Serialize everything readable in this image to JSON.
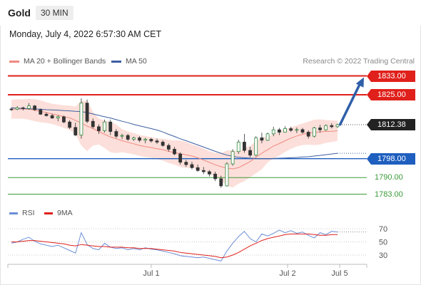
{
  "header": {
    "symbol": "Gold",
    "timeframe": "30 MIN"
  },
  "datetime": "Monday, July 4, 2022 6:57:30 AM CET",
  "legend": {
    "ma20_label": "MA 20 + Bollinger Bands",
    "ma50_label": "MA 50",
    "credit": "Research © 2022 Trading Central",
    "rsi_label": "RSI",
    "ma9_label": "9MA"
  },
  "colors": {
    "resistance": "#e0201b",
    "support": "#1f5fbf",
    "target": "#3a9a3a",
    "ma20": "#f08a80",
    "ma50": "#3d5fa3",
    "band": "#fcd9d4",
    "rsi": "#6b8ed6",
    "ma9": "#e0201b",
    "bull": "#2e8b3c",
    "bear": "#333333",
    "arrow": "#2f5fa8"
  },
  "chart_data": [
    {
      "type": "candlestick",
      "title": "Gold",
      "timeframe": "30 MIN",
      "x_ticks": [
        "Jul 1",
        "Jul 2",
        "Jul 5"
      ],
      "ylim": [
        1779,
        1836
      ],
      "last_price": 1812.38,
      "price_levels": [
        {
          "value": 1833.0,
          "label": "1833.00",
          "kind": "resistance"
        },
        {
          "value": 1825.0,
          "label": "1825.00",
          "kind": "resistance"
        },
        {
          "value": 1812.38,
          "label": "1812.38",
          "kind": "last"
        },
        {
          "value": 1798.0,
          "label": "1798.00",
          "kind": "pivot"
        },
        {
          "value": 1790.0,
          "label": "1790.00",
          "kind": "support"
        },
        {
          "value": 1783.0,
          "label": "1783.00",
          "kind": "support"
        }
      ],
      "series": [
        {
          "name": "MA 20 + Bollinger Bands",
          "values": [
            1818.9,
            1819.0,
            1819.0,
            1818.9,
            1818.5,
            1818.0,
            1817.5,
            1816.9,
            1816.4,
            1815.8,
            1815.3,
            1814.2,
            1813.0,
            1811.8,
            1810.7,
            1809.5,
            1808.3,
            1807.2,
            1806.4,
            1805.6,
            1804.9,
            1804.3,
            1803.6,
            1803.1,
            1802.7,
            1802.2,
            1801.8,
            1801.1,
            1800.6,
            1800.1,
            1799.6,
            1799.1,
            1798.4,
            1797.4,
            1796.4,
            1795.4,
            1794.6,
            1794.0,
            1793.7,
            1794.2,
            1795.5,
            1796.8,
            1798.6,
            1800.3,
            1801.8,
            1803.3,
            1804.4,
            1805.6,
            1806.7,
            1807.6,
            1808.3,
            1808.8,
            1809.1,
            1809.3,
            1809.5,
            1809.6,
            1809.8
          ]
        },
        {
          "name": "MA 50",
          "values": [
            1819.5,
            1819.3,
            1819.2,
            1819.1,
            1819.0,
            1818.9,
            1818.7,
            1818.6,
            1818.5,
            1818.3,
            1818.2,
            1818.0,
            1817.9,
            1817.5,
            1816.9,
            1816.3,
            1815.7,
            1815.2,
            1814.5,
            1813.8,
            1813.2,
            1812.5,
            1811.9,
            1811.3,
            1810.7,
            1810.1,
            1809.3,
            1808.3,
            1807.4,
            1806.4,
            1805.6,
            1804.7,
            1803.8,
            1802.9,
            1802.0,
            1801.1,
            1800.3,
            1799.5,
            1799.0,
            1798.6,
            1798.4,
            1798.2,
            1798.1,
            1798.0,
            1798.0,
            1798.1,
            1798.2,
            1798.3,
            1798.4,
            1798.5,
            1798.7,
            1798.8,
            1799.1,
            1799.4,
            1799.7,
            1800.0,
            1800.3
          ]
        }
      ],
      "candles": [
        [
          1819,
          1819.7,
          1818.2,
          1818.9
        ],
        [
          1818.9,
          1820.2,
          1818.5,
          1819.5
        ],
        [
          1819.5,
          1820.0,
          1818.4,
          1819.2
        ],
        [
          1819.2,
          1821.5,
          1818.7,
          1820.3
        ],
        [
          1820.3,
          1820.7,
          1818.2,
          1818.7
        ],
        [
          1818.7,
          1819.2,
          1816.5,
          1816.8
        ],
        [
          1816.8,
          1817.5,
          1815.8,
          1816.2
        ],
        [
          1816.2,
          1817.0,
          1814.8,
          1815.2
        ],
        [
          1815.2,
          1816.3,
          1813.8,
          1815.7
        ],
        [
          1815.7,
          1816.2,
          1813.0,
          1813.5
        ],
        [
          1813.5,
          1814.3,
          1810.5,
          1811.2
        ],
        [
          1811.2,
          1813.2,
          1807.5,
          1808.0
        ],
        [
          1808.0,
          1823.5,
          1806.5,
          1821.5
        ],
        [
          1821.5,
          1823.0,
          1813.0,
          1813.8
        ],
        [
          1813.8,
          1815.0,
          1810.7,
          1811.5
        ],
        [
          1811.5,
          1812.5,
          1808.5,
          1809.8
        ],
        [
          1809.8,
          1814.5,
          1809.0,
          1813.5
        ],
        [
          1813.5,
          1814.5,
          1808.0,
          1809.5
        ],
        [
          1809.5,
          1810.5,
          1806.6,
          1807.5
        ],
        [
          1807.5,
          1808.5,
          1806.3,
          1807.8
        ],
        [
          1807.8,
          1808.5,
          1805.5,
          1806.2
        ],
        [
          1806.2,
          1807.3,
          1805.5,
          1806.8
        ],
        [
          1806.8,
          1807.5,
          1805.0,
          1805.8
        ],
        [
          1805.8,
          1806.8,
          1804.5,
          1806.2
        ],
        [
          1806.2,
          1806.8,
          1804.8,
          1805.5
        ],
        [
          1805.5,
          1806.5,
          1804.2,
          1805.0
        ],
        [
          1805.0,
          1805.8,
          1803.0,
          1803.6
        ],
        [
          1803.6,
          1804.4,
          1801.0,
          1802.0
        ],
        [
          1802.0,
          1803.0,
          1799.5,
          1800.0
        ],
        [
          1800.0,
          1800.7,
          1795.5,
          1796.5
        ],
        [
          1796.5,
          1797.5,
          1794.5,
          1795.5
        ],
        [
          1795.5,
          1796.7,
          1793.5,
          1794.2
        ],
        [
          1794.2,
          1795.5,
          1792.5,
          1793.0
        ],
        [
          1793.0,
          1794.5,
          1791.5,
          1792.5
        ],
        [
          1792.5,
          1793.2,
          1790.5,
          1791.5
        ],
        [
          1791.5,
          1792.5,
          1788.5,
          1789.5
        ],
        [
          1789.5,
          1790.8,
          1785.7,
          1786.5
        ],
        [
          1786.5,
          1796.5,
          1786.2,
          1795.8
        ],
        [
          1795.8,
          1802.0,
          1795.0,
          1801.0
        ],
        [
          1801.0,
          1806.0,
          1800.0,
          1805.0
        ],
        [
          1805.0,
          1808.5,
          1800.5,
          1801.5
        ],
        [
          1801.5,
          1803.0,
          1798.5,
          1799.5
        ],
        [
          1799.5,
          1807.5,
          1799.0,
          1806.8
        ],
        [
          1806.8,
          1809.0,
          1804.5,
          1805.8
        ],
        [
          1805.8,
          1809.0,
          1805.5,
          1808.5
        ],
        [
          1808.5,
          1811.5,
          1807.5,
          1810.2
        ],
        [
          1810.2,
          1811.0,
          1808.0,
          1809.2
        ],
        [
          1809.2,
          1811.7,
          1809.0,
          1810.7
        ],
        [
          1810.7,
          1811.5,
          1809.3,
          1810.0
        ],
        [
          1810.0,
          1811.2,
          1808.8,
          1810.3
        ],
        [
          1810.3,
          1811.0,
          1808.5,
          1809.2
        ],
        [
          1809.2,
          1810.0,
          1806.5,
          1807.5
        ],
        [
          1807.5,
          1811.5,
          1807.0,
          1811.0
        ],
        [
          1811.0,
          1812.3,
          1809.0,
          1810.2
        ],
        [
          1810.2,
          1812.5,
          1809.8,
          1812.0
        ],
        [
          1812.0,
          1813.0,
          1810.8,
          1811.5
        ],
        [
          1811.5,
          1812.8,
          1811.0,
          1812.38
        ]
      ]
    },
    {
      "type": "line",
      "title": "RSI",
      "y_ticks": [
        "70",
        "50",
        "30"
      ],
      "ylim": [
        20,
        75
      ],
      "series": [
        {
          "name": "RSI",
          "values": [
            48,
            50,
            54,
            57,
            51,
            47,
            45,
            43,
            45,
            41,
            37,
            33,
            64,
            46,
            40,
            38,
            48,
            42,
            40,
            41,
            38,
            40,
            38,
            41,
            39,
            38,
            36,
            34,
            32,
            29,
            28,
            27,
            26,
            27,
            25,
            23,
            21,
            36,
            48,
            58,
            66,
            55,
            50,
            62,
            59,
            63,
            68,
            64,
            67,
            63,
            65,
            60,
            56,
            64,
            61,
            66,
            65
          ]
        },
        {
          "name": "9MA",
          "values": [
            50,
            50,
            51,
            52,
            52,
            51,
            50,
            49,
            48,
            47,
            45,
            44,
            46,
            45,
            44,
            43,
            43,
            42,
            42,
            42,
            41,
            41,
            40,
            40,
            40,
            39,
            38,
            37,
            36,
            34,
            33,
            32,
            31,
            30,
            29,
            28,
            26,
            27,
            30,
            34,
            39,
            44,
            48,
            52,
            55,
            57,
            59,
            61,
            62,
            62,
            62,
            62,
            61,
            60,
            60,
            61,
            61
          ]
        }
      ]
    }
  ]
}
